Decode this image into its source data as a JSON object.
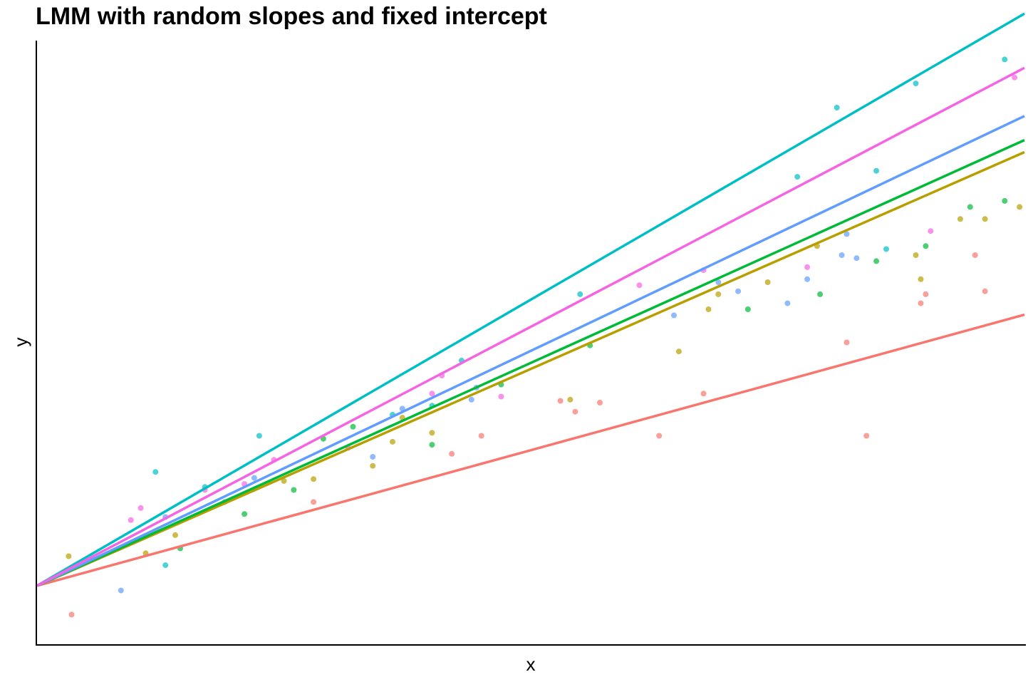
{
  "chart_data": {
    "type": "scatter",
    "title": "LMM with random slopes and fixed intercept",
    "xlabel": "x",
    "ylabel": "y",
    "xlim": [
      0,
      100
    ],
    "ylim": [
      0,
      100
    ],
    "grid": false,
    "legend": "none",
    "intercept": 9.6,
    "series": [
      {
        "color": "#F8766D",
        "slope": 0.45,
        "points": [
          [
            3.5,
            4.8
          ],
          [
            28,
            23.5
          ],
          [
            42,
            31.5
          ],
          [
            45,
            34.5
          ],
          [
            53,
            40.3
          ],
          [
            54.5,
            38.5
          ],
          [
            57,
            40
          ],
          [
            63,
            34.5
          ],
          [
            67.5,
            41.5
          ],
          [
            82,
            50
          ],
          [
            84,
            34.5
          ],
          [
            89.5,
            56.5
          ],
          [
            90,
            58
          ],
          [
            95,
            64.5
          ],
          [
            96,
            58.5
          ]
        ]
      },
      {
        "color": "#B79F00",
        "slope": 0.72,
        "points": [
          [
            3.2,
            14.5
          ],
          [
            11,
            15
          ],
          [
            14,
            18
          ],
          [
            25,
            27
          ],
          [
            28,
            27.3
          ],
          [
            34,
            29.5
          ],
          [
            36,
            33.5
          ],
          [
            37,
            37.5
          ],
          [
            40,
            35
          ],
          [
            54,
            40.5
          ],
          [
            65,
            48.5
          ],
          [
            68,
            55.5
          ],
          [
            69,
            58
          ],
          [
            74,
            60
          ],
          [
            79,
            66
          ],
          [
            89,
            64.5
          ],
          [
            89.5,
            60.5
          ],
          [
            93.5,
            70.5
          ],
          [
            96,
            70.5
          ],
          [
            99.5,
            72.5
          ]
        ]
      },
      {
        "color": "#00BA38",
        "slope": 0.74,
        "points": [
          [
            14.5,
            15.8
          ],
          [
            21,
            21.5
          ],
          [
            26,
            25.5
          ],
          [
            29,
            34
          ],
          [
            32,
            36
          ],
          [
            40,
            33
          ],
          [
            47,
            43
          ],
          [
            56,
            49.5
          ],
          [
            72,
            55.5
          ],
          [
            79.3,
            58
          ],
          [
            85,
            63.5
          ],
          [
            90,
            66
          ],
          [
            94.5,
            72.5
          ],
          [
            98,
            73.5
          ]
        ]
      },
      {
        "color": "#00BFC4",
        "slope": 0.95,
        "points": [
          [
            12,
            28.5
          ],
          [
            13,
            13
          ],
          [
            17,
            26
          ],
          [
            22.5,
            34.5
          ],
          [
            36,
            38
          ],
          [
            40,
            39.5
          ],
          [
            43,
            47
          ],
          [
            55,
            58
          ],
          [
            77,
            77.5
          ],
          [
            81,
            89
          ],
          [
            85,
            78.5
          ],
          [
            86,
            65.5
          ],
          [
            89,
            93
          ],
          [
            98,
            97
          ]
        ]
      },
      {
        "color": "#619CFF",
        "slope": 0.78,
        "points": [
          [
            8.5,
            8.8
          ],
          [
            13,
            21
          ],
          [
            19,
            23.5
          ],
          [
            22,
            27.5
          ],
          [
            34,
            31
          ],
          [
            37,
            39
          ],
          [
            44,
            40.5
          ],
          [
            44.5,
            42.5
          ],
          [
            64.5,
            54.5
          ],
          [
            69,
            60
          ],
          [
            71,
            58.5
          ],
          [
            76,
            56.5
          ],
          [
            78,
            60.5
          ],
          [
            81.5,
            64.5
          ],
          [
            82,
            68
          ],
          [
            83,
            64
          ]
        ]
      },
      {
        "color": "#F564E3",
        "slope": 0.86,
        "points": [
          [
            9.5,
            20.5
          ],
          [
            10.5,
            22.5
          ],
          [
            17,
            25.5
          ],
          [
            21,
            26.5
          ],
          [
            24,
            30.5
          ],
          [
            31.5,
            32.5
          ],
          [
            40,
            41.5
          ],
          [
            41,
            44.5
          ],
          [
            47,
            41
          ],
          [
            61,
            59.5
          ],
          [
            67.5,
            62
          ],
          [
            78,
            62.5
          ],
          [
            90.5,
            68.5
          ],
          [
            99,
            94
          ]
        ]
      }
    ]
  }
}
